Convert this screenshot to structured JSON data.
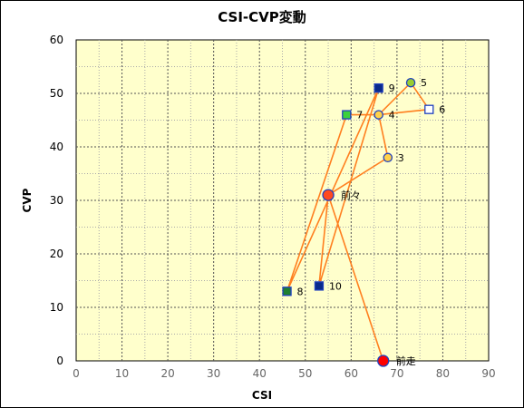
{
  "chart_data": {
    "type": "scatter",
    "title": "CSI-CVP変動",
    "xlabel": "CSI",
    "ylabel": "CVP",
    "xlim": [
      0,
      90
    ],
    "ylim": [
      0,
      60
    ],
    "x_ticks": [
      0,
      10,
      20,
      30,
      40,
      50,
      60,
      70,
      80,
      90
    ],
    "y_ticks": [
      0,
      10,
      20,
      30,
      40,
      50,
      60
    ],
    "grid": true,
    "plot_background": "#ffffcc",
    "line_color": "#ff7f1f",
    "points": [
      {
        "label": "前走",
        "x": 67,
        "y": 0,
        "marker": "circle",
        "fill": "#ff0000",
        "stroke": "#1f3fbf",
        "size": "large"
      },
      {
        "label": "前々",
        "x": 55,
        "y": 31,
        "marker": "circle",
        "fill": "#ff4a1f",
        "stroke": "#1f3fbf",
        "size": "large"
      },
      {
        "label": "3",
        "x": 68,
        "y": 38,
        "marker": "circle",
        "fill": "#ffd24a",
        "stroke": "#1f3fbf"
      },
      {
        "label": "4",
        "x": 66,
        "y": 46,
        "marker": "circle",
        "fill": "#ffd24a",
        "stroke": "#1f3fbf"
      },
      {
        "label": "5",
        "x": 73,
        "y": 52,
        "marker": "circle",
        "fill": "#9acd32",
        "stroke": "#1f3fbf"
      },
      {
        "label": "6",
        "x": 77,
        "y": 47,
        "marker": "square",
        "fill": "#ffffff",
        "stroke": "#1f3fbf"
      },
      {
        "label": "7",
        "x": 59,
        "y": 46,
        "marker": "square",
        "fill": "#3cd13c",
        "stroke": "#1f3fbf"
      },
      {
        "label": "8",
        "x": 46,
        "y": 13,
        "marker": "square",
        "fill": "#1f7f2f",
        "stroke": "#1f3fbf"
      },
      {
        "label": "9",
        "x": 66,
        "y": 51,
        "marker": "square",
        "fill": "#0a2a8a",
        "stroke": "#1f3fbf"
      },
      {
        "label": "10",
        "x": 53,
        "y": 14,
        "marker": "square",
        "fill": "#0a2a8a",
        "stroke": "#1f3fbf"
      }
    ],
    "connection_order": [
      "前走",
      "前々",
      "3",
      "4",
      "5",
      "6",
      "4",
      "7",
      "8",
      "9",
      "10",
      "前々"
    ]
  }
}
